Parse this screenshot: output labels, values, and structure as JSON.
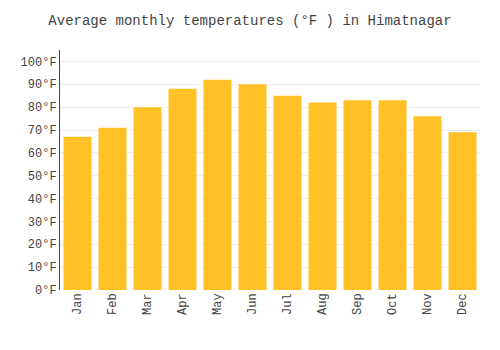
{
  "chart_data": {
    "type": "bar",
    "title": "Average monthly temperatures (°F ) in Himatnagar",
    "categories": [
      "Jan",
      "Feb",
      "Mar",
      "Apr",
      "May",
      "Jun",
      "Jul",
      "Aug",
      "Sep",
      "Oct",
      "Nov",
      "Dec"
    ],
    "values": [
      67,
      71,
      80,
      88,
      92,
      90,
      85,
      82,
      83,
      83,
      76,
      69
    ],
    "color": "#FFC125",
    "ylim": [
      0,
      105
    ],
    "yticks": [
      {
        "value": 0,
        "label": "0°F"
      },
      {
        "value": 10,
        "label": "10°F"
      },
      {
        "value": 20,
        "label": "20°F"
      },
      {
        "value": 30,
        "label": "30°F"
      },
      {
        "value": 40,
        "label": "40°F"
      },
      {
        "value": 50,
        "label": "50°F"
      },
      {
        "value": 60,
        "label": "60°F"
      },
      {
        "value": 70,
        "label": "70°F"
      },
      {
        "value": 80,
        "label": "80°F"
      },
      {
        "value": 90,
        "label": "90°F"
      },
      {
        "value": 100,
        "label": "100°F"
      }
    ],
    "grid": true
  }
}
